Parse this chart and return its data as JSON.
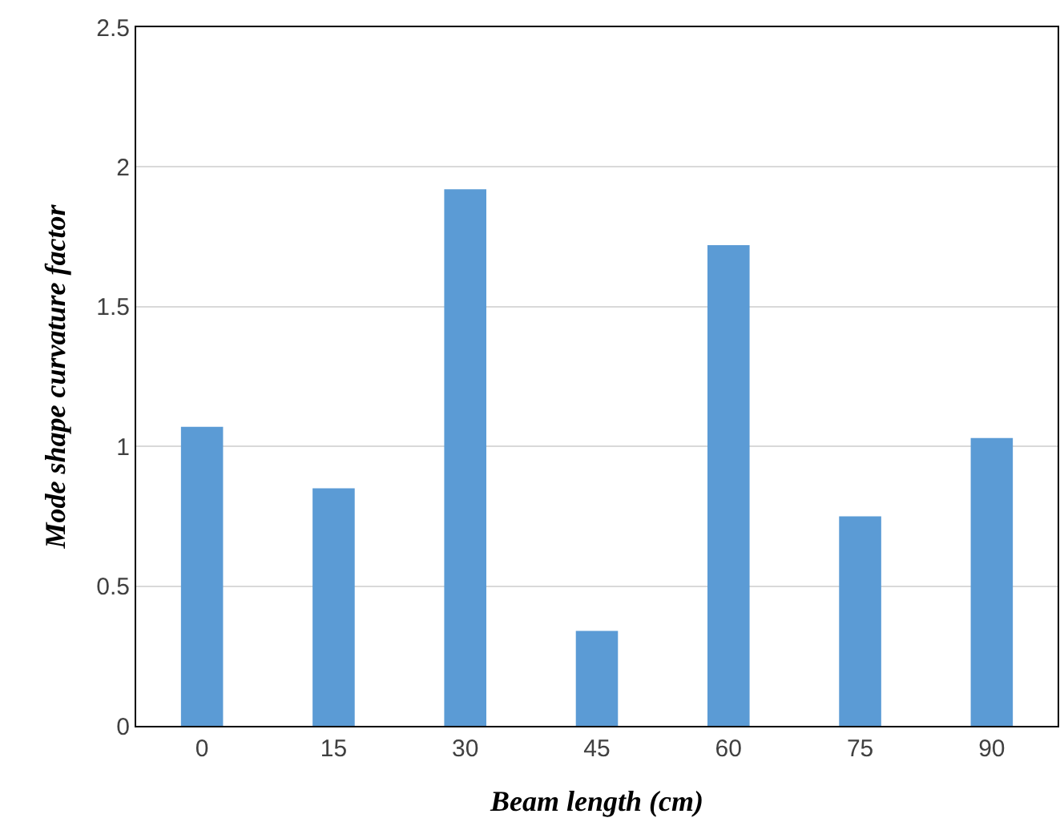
{
  "chart_data": {
    "type": "bar",
    "xlabel": "Beam length (cm)",
    "ylabel": "Mode shape curvature factor",
    "categories": [
      "0",
      "15",
      "30",
      "45",
      "60",
      "75",
      "90"
    ],
    "values": [
      1.07,
      0.85,
      1.92,
      0.34,
      1.72,
      0.75,
      1.03
    ],
    "color": "#5b9bd5",
    "ylim": [
      0,
      2.5
    ],
    "yticks": [
      0,
      0.5,
      1,
      1.5,
      2,
      2.5
    ],
    "grid": "y"
  }
}
